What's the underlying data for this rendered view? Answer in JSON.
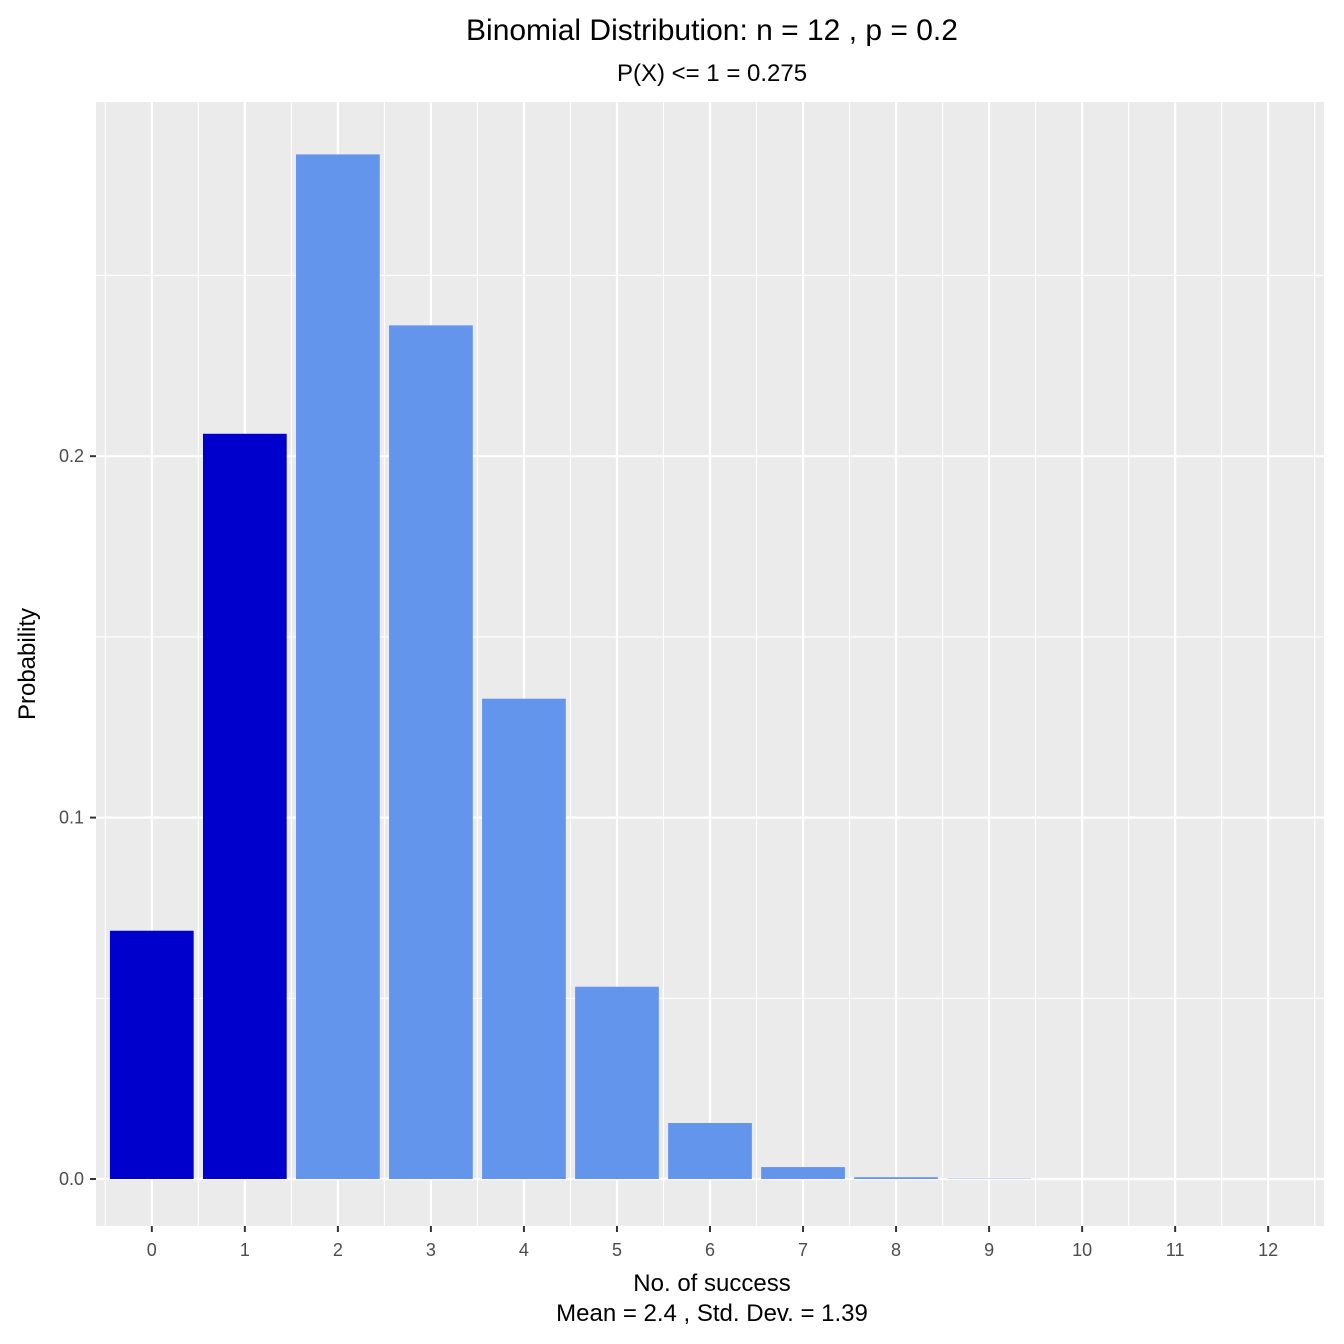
{
  "chart_data": {
    "type": "bar",
    "title": "Binomial Distribution: n = 12 , p = 0.2",
    "subtitle": "P(X) <= 1 = 0.275",
    "xlabel": "No. of success",
    "xlabel_sub": "Mean = 2.4 , Std. Dev. = 1.39",
    "ylabel": "Probability",
    "categories": [
      "0",
      "1",
      "2",
      "3",
      "4",
      "5",
      "6",
      "7",
      "8",
      "9",
      "10",
      "11",
      "12"
    ],
    "values": [
      0.0687,
      0.2062,
      0.2835,
      0.2362,
      0.1329,
      0.0532,
      0.0155,
      0.0033,
      0.0005,
      0.0001,
      0.0,
      0.0,
      0.0
    ],
    "highlighted": [
      true,
      true,
      false,
      false,
      false,
      false,
      false,
      false,
      false,
      false,
      false,
      false,
      false
    ],
    "y_ticks": [
      "0.0",
      "0.1",
      "0.2"
    ],
    "ylim": [
      -0.013,
      0.298
    ],
    "grid": true,
    "colors": {
      "highlight": "#0000CD",
      "normal": "#6495ED",
      "panel_background": "#EBEBEB",
      "grid": "#FFFFFF"
    }
  }
}
